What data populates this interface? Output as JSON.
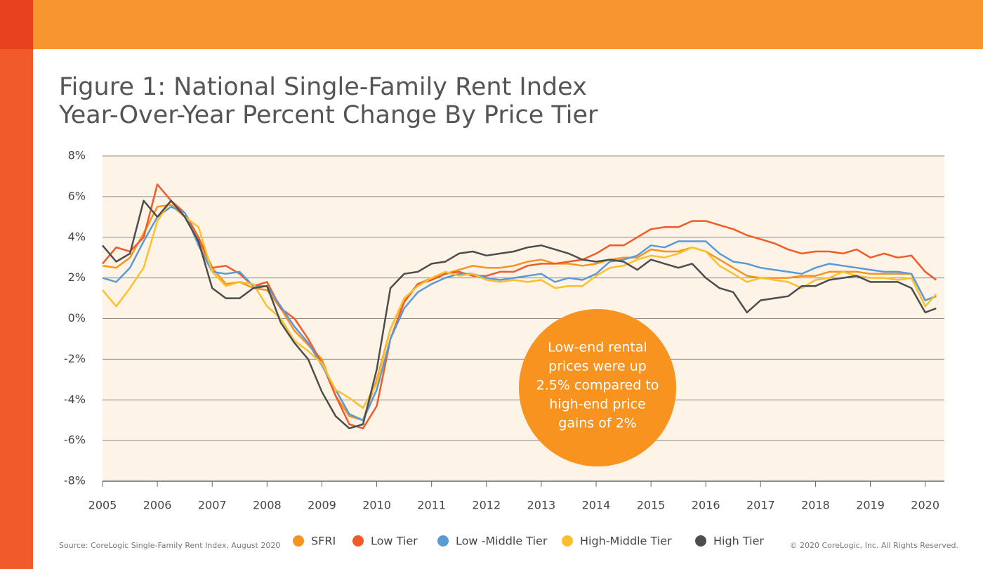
{
  "chart_data": {
    "type": "line",
    "title": "Figure 1: National Single-Family Rent Index",
    "subtitle": "Year-Over-Year Percent Change By Price Tier",
    "x": [
      2005,
      2005.25,
      2005.5,
      2005.75,
      2006,
      2006.25,
      2006.5,
      2006.75,
      2007,
      2007.25,
      2007.5,
      2007.75,
      2008,
      2008.25,
      2008.5,
      2008.75,
      2009,
      2009.25,
      2009.5,
      2009.75,
      2010,
      2010.25,
      2010.5,
      2010.75,
      2011,
      2011.25,
      2011.5,
      2011.75,
      2012,
      2012.25,
      2012.5,
      2012.75,
      2013,
      2013.25,
      2013.5,
      2013.75,
      2014,
      2014.25,
      2014.5,
      2014.75,
      2015,
      2015.25,
      2015.5,
      2015.75,
      2016,
      2016.25,
      2016.5,
      2016.75,
      2017,
      2017.25,
      2017.5,
      2017.75,
      2018,
      2018.25,
      2018.5,
      2018.75,
      2019,
      2019.25,
      2019.5,
      2019.75,
      2020,
      2020.2
    ],
    "series": [
      {
        "name": "SFRI",
        "color": "#f7931e",
        "values": [
          2.6,
          2.5,
          3.0,
          4.2,
          5.5,
          5.6,
          5.0,
          3.8,
          2.5,
          1.7,
          1.8,
          1.5,
          1.4,
          0.5,
          -0.6,
          -1.3,
          -2.0,
          -3.8,
          -4.8,
          -5.0,
          -3.0,
          -0.5,
          0.9,
          1.7,
          2.0,
          2.2,
          2.4,
          2.6,
          2.5,
          2.5,
          2.6,
          2.8,
          2.9,
          2.7,
          2.7,
          2.6,
          2.7,
          2.9,
          3.0,
          3.0,
          3.4,
          3.3,
          3.3,
          3.5,
          3.3,
          2.9,
          2.5,
          2.1,
          2.0,
          2.0,
          2.0,
          2.1,
          2.1,
          2.3,
          2.3,
          2.3,
          2.2,
          2.2,
          2.2,
          2.2,
          0.9,
          1.1
        ]
      },
      {
        "name": "Low Tier",
        "color": "#f15a29",
        "values": [
          2.7,
          3.5,
          3.3,
          4.0,
          6.6,
          5.8,
          5.2,
          4.0,
          2.5,
          2.6,
          2.2,
          1.6,
          1.8,
          0.5,
          0.0,
          -1.0,
          -2.2,
          -3.8,
          -5.2,
          -5.4,
          -4.3,
          -1.0,
          0.8,
          1.7,
          1.9,
          2.2,
          2.3,
          2.1,
          2.1,
          2.3,
          2.3,
          2.6,
          2.7,
          2.7,
          2.8,
          2.9,
          3.2,
          3.6,
          3.6,
          4.0,
          4.4,
          4.5,
          4.5,
          4.8,
          4.8,
          4.6,
          4.4,
          4.1,
          3.9,
          3.7,
          3.4,
          3.2,
          3.3,
          3.3,
          3.2,
          3.4,
          3.0,
          3.2,
          3.0,
          3.1,
          2.3,
          1.9
        ]
      },
      {
        "name": "Low -Middle Tier",
        "color": "#5b9bd5",
        "values": [
          2.0,
          1.8,
          2.5,
          3.8,
          5.0,
          5.5,
          5.2,
          3.6,
          2.3,
          2.2,
          2.3,
          1.6,
          1.6,
          0.6,
          -0.4,
          -1.2,
          -2.3,
          -3.5,
          -4.7,
          -5.0,
          -3.5,
          -1.0,
          0.5,
          1.3,
          1.7,
          2.0,
          2.2,
          2.2,
          2.0,
          1.9,
          2.0,
          2.1,
          2.2,
          1.8,
          2.0,
          1.9,
          2.2,
          2.8,
          2.9,
          3.1,
          3.6,
          3.5,
          3.8,
          3.8,
          3.8,
          3.2,
          2.8,
          2.7,
          2.5,
          2.4,
          2.3,
          2.2,
          2.5,
          2.7,
          2.6,
          2.5,
          2.4,
          2.3,
          2.3,
          2.2,
          0.9,
          1.1
        ]
      },
      {
        "name": "High-Middle Tier",
        "color": "#fbc02d",
        "values": [
          1.4,
          0.6,
          1.5,
          2.5,
          4.8,
          5.8,
          5.0,
          4.5,
          2.3,
          1.6,
          1.8,
          1.7,
          0.6,
          0.0,
          -1.1,
          -1.6,
          -2.2,
          -3.5,
          -3.9,
          -4.4,
          -3.2,
          -0.5,
          1.0,
          1.6,
          2.0,
          2.3,
          2.1,
          2.2,
          1.9,
          1.8,
          1.9,
          1.8,
          1.9,
          1.5,
          1.6,
          1.6,
          2.1,
          2.5,
          2.6,
          2.9,
          3.1,
          3.0,
          3.2,
          3.5,
          3.3,
          2.6,
          2.2,
          1.8,
          2.0,
          1.9,
          1.8,
          1.5,
          1.9,
          2.0,
          2.3,
          2.1,
          2.0,
          2.0,
          1.9,
          2.0,
          0.6,
          1.2
        ]
      },
      {
        "name": "High Tier",
        "color": "#4d4d4d",
        "values": [
          3.6,
          2.8,
          3.2,
          5.8,
          5.0,
          5.8,
          5.0,
          3.8,
          1.5,
          1.0,
          1.0,
          1.5,
          1.6,
          -0.2,
          -1.2,
          -2.0,
          -3.6,
          -4.8,
          -5.4,
          -5.2,
          -2.5,
          1.5,
          2.2,
          2.3,
          2.7,
          2.8,
          3.2,
          3.3,
          3.1,
          3.2,
          3.3,
          3.5,
          3.6,
          3.4,
          3.2,
          2.9,
          2.8,
          2.9,
          2.8,
          2.4,
          2.9,
          2.7,
          2.5,
          2.7,
          2.0,
          1.5,
          1.3,
          0.3,
          0.9,
          1.0,
          1.1,
          1.6,
          1.6,
          1.9,
          2.0,
          2.1,
          1.8,
          1.8,
          1.8,
          1.5,
          0.3,
          0.5
        ]
      }
    ],
    "xlim": [
      2005,
      2020.35
    ],
    "xticks": [
      2005,
      2006,
      2007,
      2008,
      2009,
      2010,
      2011,
      2012,
      2013,
      2014,
      2015,
      2016,
      2017,
      2018,
      2019,
      2020
    ],
    "ylim": [
      -8,
      8
    ],
    "yticks": [
      {
        "value": -8,
        "label": "-8%"
      },
      {
        "value": -6,
        "label": "-6%"
      },
      {
        "value": -4,
        "label": "-4%"
      },
      {
        "value": -2,
        "label": "-2%"
      },
      {
        "value": 0,
        "label": "0%"
      },
      {
        "value": 2,
        "label": "2%"
      },
      {
        "value": 4,
        "label": "4%"
      },
      {
        "value": 6,
        "label": "6%"
      },
      {
        "value": 8,
        "label": "8%"
      }
    ],
    "grid": true,
    "annotation": [
      "Low-end rental",
      "prices were up",
      "2.5% compared to",
      "high-end price",
      "gains of 2%"
    ],
    "source": "Source: CoreLogic Single-Family Rent Index, August 2020",
    "copyright": "© 2020 CoreLogic, Inc. All Rights Reserved."
  }
}
